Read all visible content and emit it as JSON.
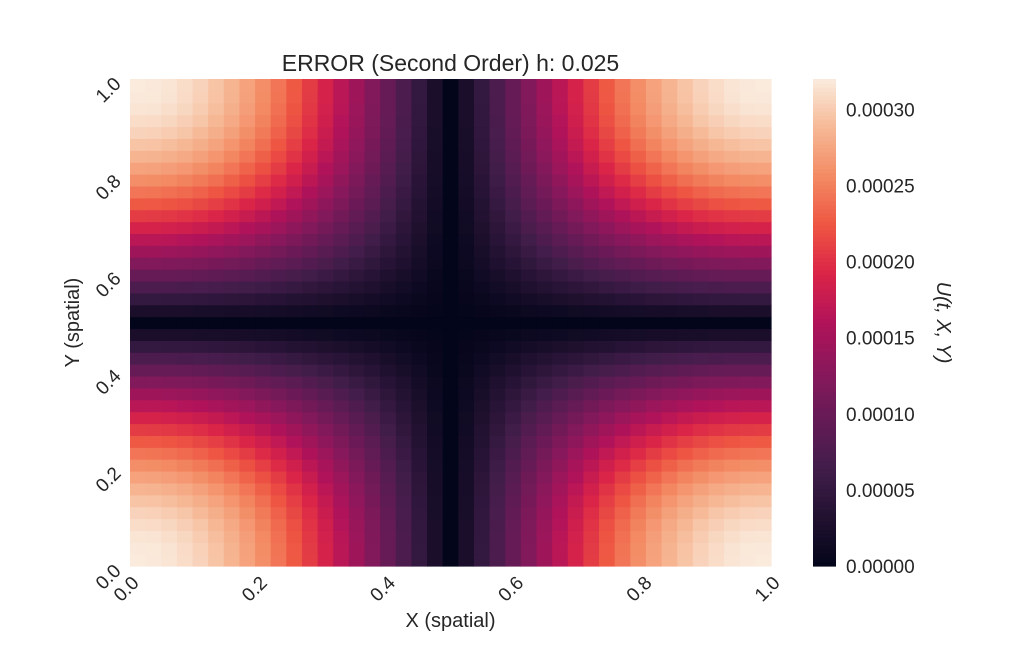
{
  "chart_data": {
    "type": "heatmap",
    "title": "ERROR (Second Order) h: 0.025",
    "xlabel": "X (spatial)",
    "ylabel": "Y (spatial)",
    "colorbar_label": "U(t, X, Y)",
    "colormap": "rocket",
    "grid": false,
    "xlim": [
      0.0,
      1.0
    ],
    "ylim": [
      0.0,
      1.0
    ],
    "h": 0.025,
    "nx": 41,
    "ny": 41,
    "x_ticks": [
      "0.0",
      "0.2",
      "0.4",
      "0.6",
      "0.8",
      "1.0"
    ],
    "y_ticks": [
      "0.0",
      "0.2",
      "0.4",
      "0.6",
      "0.8",
      "1.0"
    ],
    "colorbar_ticks": [
      "0.00000",
      "0.00005",
      "0.00010",
      "0.00015",
      "0.00020",
      "0.00025",
      "0.00030"
    ],
    "colorbar_range": [
      0.0,
      0.00032
    ],
    "z_max": 0.00032,
    "z_description": "|cos(pi x) cos(pi y)| pattern: zero along x=0.5 and y=0.5, maximum near the four corners"
  }
}
